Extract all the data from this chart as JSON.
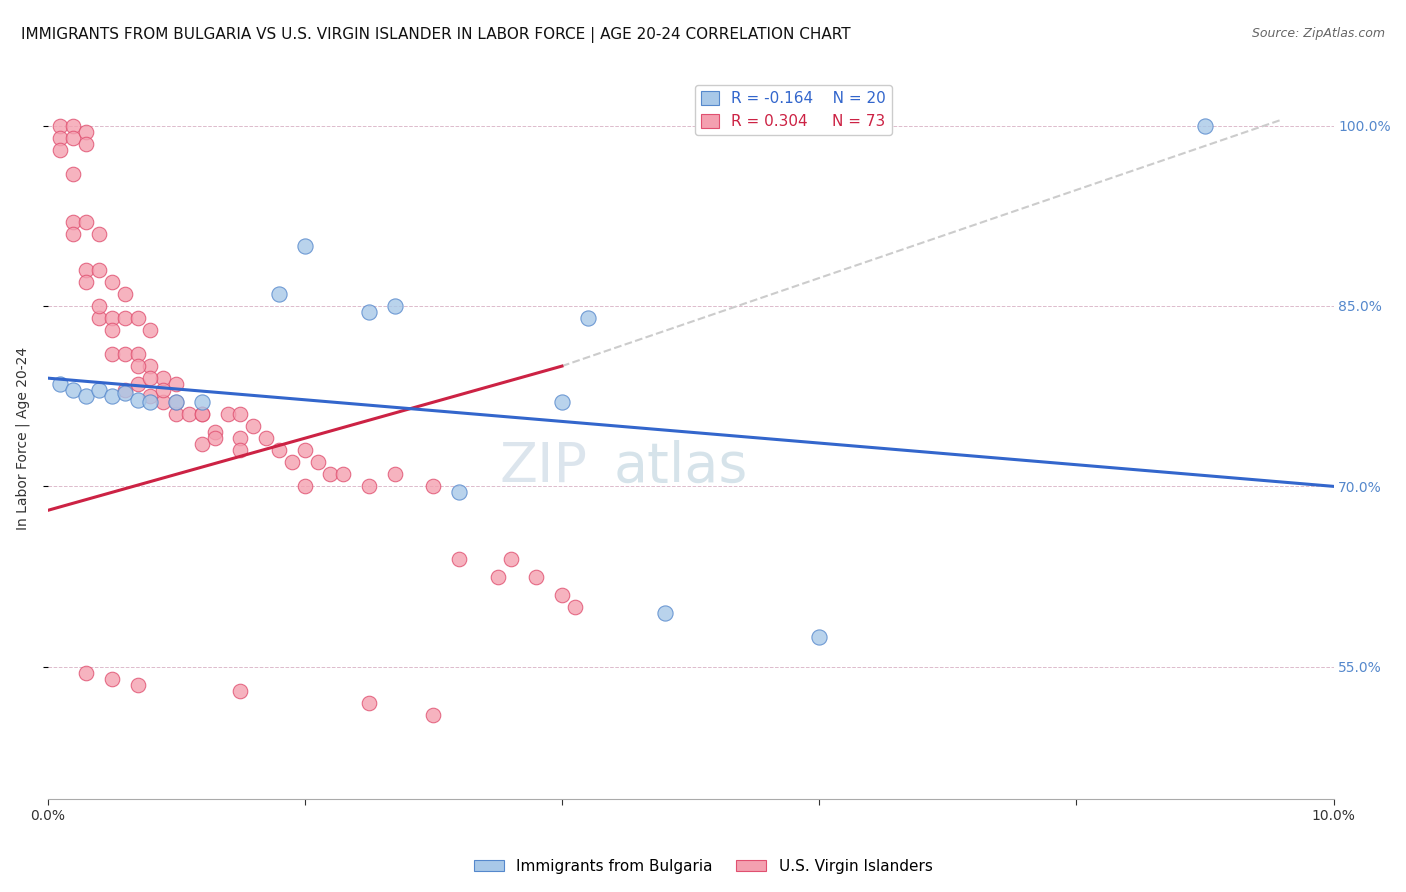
{
  "title": "IMMIGRANTS FROM BULGARIA VS U.S. VIRGIN ISLANDER IN LABOR FORCE | AGE 20-24 CORRELATION CHART",
  "source": "Source: ZipAtlas.com",
  "ylabel": "In Labor Force | Age 20-24",
  "xmin": 0.0,
  "xmax": 0.1,
  "ymin": 0.44,
  "ymax": 1.04,
  "yticks": [
    0.55,
    0.7,
    0.85,
    1.0
  ],
  "ytick_labels": [
    "55.0%",
    "70.0%",
    "85.0%",
    "100.0%"
  ],
  "xticks": [
    0.0,
    0.02,
    0.04,
    0.06,
    0.08,
    0.1
  ],
  "xtick_labels": [
    "0.0%",
    "",
    "",
    "",
    "",
    "10.0%"
  ],
  "blue_color": "#a8c8e8",
  "pink_color": "#f4a0b0",
  "blue_edge": "#5588cc",
  "pink_edge": "#e05070",
  "trend_blue": "#3366cc",
  "trend_pink": "#cc2244",
  "trend_gray": "#cccccc",
  "legend_R_blue": "-0.164",
  "legend_N_blue": "20",
  "legend_R_pink": "0.304",
  "legend_N_pink": "73",
  "watermark": "ZIPatlas",
  "blue_points_x": [
    0.001,
    0.002,
    0.003,
    0.004,
    0.005,
    0.006,
    0.007,
    0.008,
    0.01,
    0.012,
    0.018,
    0.02,
    0.025,
    0.027,
    0.032,
    0.04,
    0.042,
    0.048,
    0.06,
    0.09
  ],
  "blue_points_y": [
    0.785,
    0.78,
    0.775,
    0.78,
    0.775,
    0.778,
    0.772,
    0.77,
    0.77,
    0.77,
    0.86,
    0.9,
    0.845,
    0.85,
    0.695,
    0.77,
    0.84,
    0.595,
    0.575,
    1.0
  ],
  "pink_points_x": [
    0.001,
    0.001,
    0.001,
    0.002,
    0.002,
    0.002,
    0.002,
    0.003,
    0.003,
    0.003,
    0.003,
    0.004,
    0.004,
    0.004,
    0.005,
    0.005,
    0.005,
    0.006,
    0.006,
    0.006,
    0.006,
    0.007,
    0.007,
    0.007,
    0.008,
    0.008,
    0.008,
    0.009,
    0.009,
    0.01,
    0.01,
    0.011,
    0.012,
    0.012,
    0.013,
    0.014,
    0.015,
    0.015,
    0.016,
    0.017,
    0.018,
    0.019,
    0.02,
    0.02,
    0.021,
    0.022,
    0.023,
    0.025,
    0.027,
    0.03,
    0.032,
    0.035,
    0.036,
    0.038,
    0.04,
    0.041,
    0.002,
    0.003,
    0.004,
    0.005,
    0.007,
    0.008,
    0.009,
    0.01,
    0.012,
    0.013,
    0.015,
    0.003,
    0.005,
    0.007,
    0.015,
    0.025,
    0.03
  ],
  "pink_points_y": [
    1.0,
    0.99,
    0.98,
    1.0,
    0.99,
    0.96,
    0.92,
    0.995,
    0.985,
    0.92,
    0.88,
    0.91,
    0.88,
    0.84,
    0.87,
    0.84,
    0.81,
    0.86,
    0.84,
    0.81,
    0.78,
    0.84,
    0.81,
    0.785,
    0.83,
    0.8,
    0.775,
    0.79,
    0.77,
    0.785,
    0.76,
    0.76,
    0.76,
    0.735,
    0.745,
    0.76,
    0.76,
    0.74,
    0.75,
    0.74,
    0.73,
    0.72,
    0.73,
    0.7,
    0.72,
    0.71,
    0.71,
    0.7,
    0.71,
    0.7,
    0.64,
    0.625,
    0.64,
    0.625,
    0.61,
    0.6,
    0.91,
    0.87,
    0.85,
    0.83,
    0.8,
    0.79,
    0.78,
    0.77,
    0.76,
    0.74,
    0.73,
    0.545,
    0.54,
    0.535,
    0.53,
    0.52,
    0.51
  ],
  "blue_trend_x": [
    0.0,
    0.1
  ],
  "blue_trend_y": [
    0.79,
    0.7
  ],
  "pink_trend_x": [
    0.0,
    0.04
  ],
  "pink_trend_y": [
    0.68,
    0.8
  ],
  "gray_trend_x": [
    0.04,
    0.096
  ],
  "gray_trend_y": [
    0.8,
    1.005
  ],
  "title_fontsize": 11,
  "axis_label_fontsize": 10,
  "tick_fontsize": 10,
  "legend_fontsize": 11,
  "watermark_fontsize": 40,
  "source_fontsize": 9,
  "ytick_color": "#5588cc",
  "xtick_color": "#333333"
}
